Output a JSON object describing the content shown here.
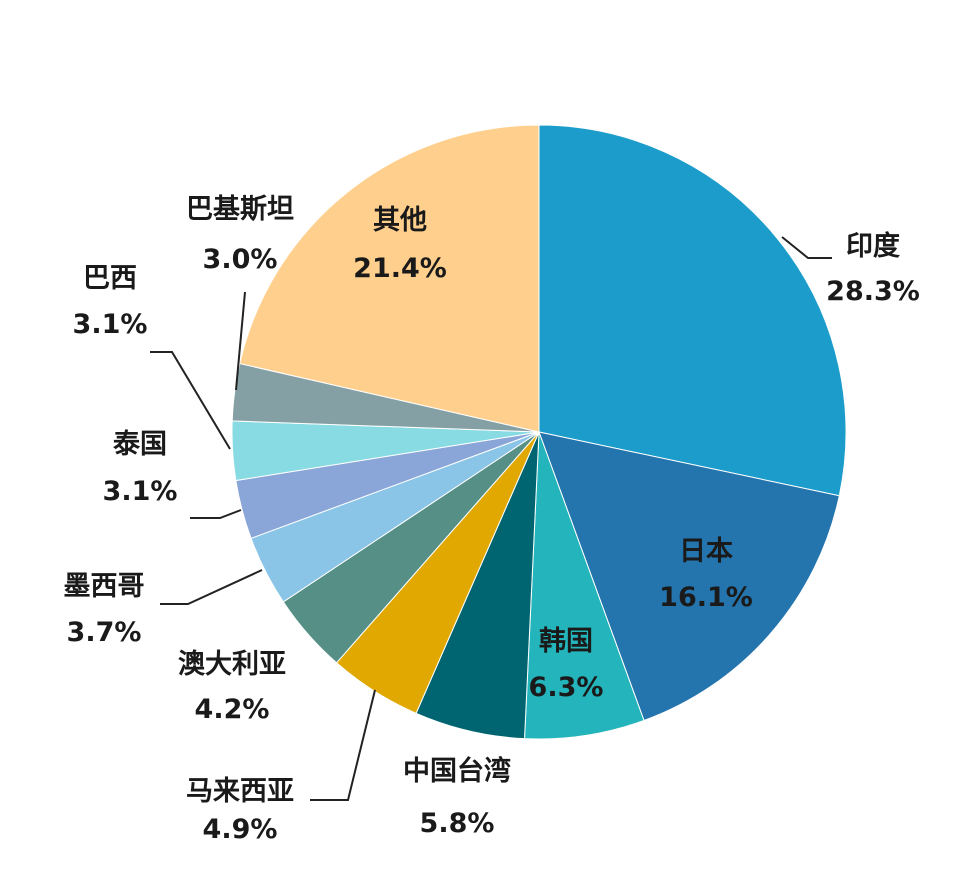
{
  "chart_data": {
    "type": "pie",
    "start_angle_deg": 0,
    "direction": "clockwise",
    "slices": [
      {
        "label": "印度",
        "value": 28.3,
        "value_label": "28.3%",
        "color": "#1b9ccb"
      },
      {
        "label": "日本",
        "value": 16.1,
        "value_label": "16.1%",
        "color": "#2474ad"
      },
      {
        "label": "韩国",
        "value": 6.3,
        "value_label": "6.3%",
        "color": "#23b5bb"
      },
      {
        "label": "中国台湾",
        "value": 5.8,
        "value_label": "5.8%",
        "color": "#006570"
      },
      {
        "label": "马来西亚",
        "value": 4.9,
        "value_label": "4.9%",
        "color": "#e0a800"
      },
      {
        "label": "澳大利亚",
        "value": 4.2,
        "value_label": "4.2%",
        "color": "#558f85"
      },
      {
        "label": "墨西哥",
        "value": 3.7,
        "value_label": "3.7%",
        "color": "#8ac5e8"
      },
      {
        "label": "泰国",
        "value": 3.1,
        "value_label": "3.1%",
        "color": "#8aa6d9"
      },
      {
        "label": "巴西",
        "value": 3.1,
        "value_label": "3.1%",
        "color": "#88dbe3"
      },
      {
        "label": "巴基斯坦",
        "value": 3.0,
        "value_label": "3.0%",
        "color": "#85a0a5"
      },
      {
        "label": "其他",
        "value": 21.4,
        "value_label": "21.4%",
        "color": "#ffd08d"
      }
    ]
  }
}
